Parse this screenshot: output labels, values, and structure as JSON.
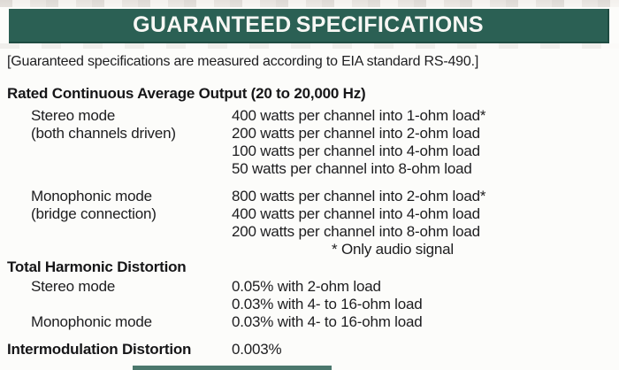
{
  "colors": {
    "header_bar_green": "#2b6054",
    "header_bar_edge": "#1f4c42",
    "text": "#1d1d1f",
    "page_background": "#fcfcfa"
  },
  "header": {
    "title": "GUARANTEED SPECIFICATIONS"
  },
  "note": "[Guaranteed specifications are measured according to EIA standard RS-490.]",
  "rated_output": {
    "heading": "Rated Continuous Average Output (20 to 20,000 Hz)",
    "stereo": {
      "label": "Stereo mode",
      "sublabel": "(both channels driven)",
      "values": [
        "400 watts per channel into 1-ohm load*",
        "200 watts per channel into 2-ohm load",
        "100 watts per channel into 4-ohm load",
        "50 watts per channel into 8-ohm load"
      ]
    },
    "mono": {
      "label": "Monophonic mode",
      "sublabel": "(bridge connection)",
      "values": [
        "800 watts per channel into 2-ohm load*",
        "400 watts per channel into 4-ohm load",
        "200 watts per channel into 8-ohm load"
      ]
    },
    "footnote": "* Only audio signal"
  },
  "thd": {
    "heading": "Total Harmonic Distortion",
    "rows": [
      {
        "label": "Stereo mode",
        "value": "0.05% with 2-ohm load"
      },
      {
        "label": "",
        "value": "0.03% with 4- to 16-ohm load"
      },
      {
        "label": "Monophonic mode",
        "value": "0.03% with 4- to 16-ohm load"
      }
    ]
  },
  "imd": {
    "heading": "Intermodulation Distortion",
    "value": "0.003%"
  }
}
